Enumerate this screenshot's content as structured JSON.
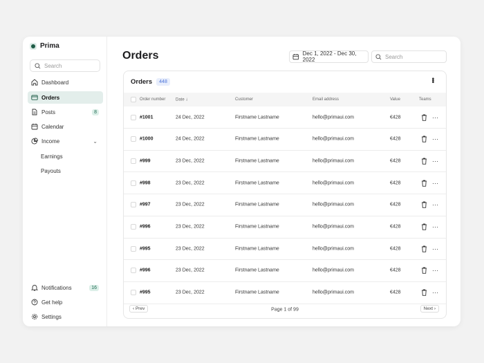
{
  "brand": {
    "name": "Prima"
  },
  "sidebar": {
    "search_placeholder": "Search",
    "items": [
      {
        "label": "Dashboard",
        "icon": "home-icon"
      },
      {
        "label": "Orders",
        "icon": "credit-card-icon",
        "active": true
      },
      {
        "label": "Posts",
        "icon": "document-icon",
        "badge": "8"
      },
      {
        "label": "Calendar",
        "icon": "calendar-icon"
      },
      {
        "label": "Income",
        "icon": "pie-chart-icon",
        "expanded": true
      },
      {
        "label": "Earnings"
      },
      {
        "label": "Payouts"
      }
    ],
    "bottom": [
      {
        "label": "Notifications",
        "icon": "bell-icon",
        "badge": "16"
      },
      {
        "label": "Get help",
        "icon": "help-circle-icon"
      },
      {
        "label": "Settings",
        "icon": "gear-icon"
      }
    ]
  },
  "header": {
    "title": "Orders",
    "date_range": "Dec 1, 2022 - Dec 30, 2022",
    "search_placeholder": "Search"
  },
  "table": {
    "title": "Orders",
    "count": "448",
    "columns": [
      "Order number",
      "Date",
      "Customer",
      "Email address",
      "Value",
      "Teams"
    ],
    "sort_column": "Date",
    "sort_direction": "descending",
    "rows": [
      [
        "#1001",
        "24 Dec, 2022",
        "Firstname Lastname",
        "hello@primaui.com",
        "€428"
      ],
      [
        "#1000",
        "24 Dec, 2022",
        "Firstname Lastname",
        "hello@primaui.com",
        "€428"
      ],
      [
        "#999",
        "23 Dec, 2022",
        "Firstname Lastname",
        "hello@primaui.com",
        "€428"
      ],
      [
        "#998",
        "23 Dec, 2022",
        "Firstname Lastname",
        "hello@primaui.com",
        "€428"
      ],
      [
        "#997",
        "23 Dec, 2022",
        "Firstname Lastname",
        "hello@primaui.com",
        "€428"
      ],
      [
        "#996",
        "23 Dec, 2022",
        "Firstname Lastname",
        "hello@primaui.com",
        "€428"
      ],
      [
        "#995",
        "23 Dec, 2022",
        "Firstname Lastname",
        "hello@primaui.com",
        "€428"
      ],
      [
        "#996",
        "23 Dec, 2022",
        "Firstname Lastname",
        "hello@primaui.com",
        "€428"
      ],
      [
        "#995",
        "23 Dec, 2022",
        "Firstname Lastname",
        "hello@primaui.com",
        "€428"
      ]
    ],
    "pagination": {
      "prev": "‹ Prev",
      "next": "Next ›",
      "page_text": "Page 1 of 99"
    }
  },
  "colors": {
    "accent": "#1f5c47",
    "active_bg": "#e3eeeb",
    "count_badge": "#4a72d8"
  }
}
